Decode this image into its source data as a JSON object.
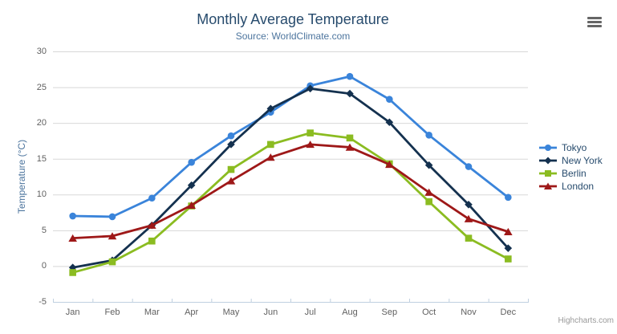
{
  "credits": "Highcharts.com",
  "menu_icon": "hamburger-menu-icon",
  "style": {
    "title_color": "#274b6d",
    "subtitle_color": "#4d759e",
    "axis_title_color": "#4d759e",
    "tick_label_color": "#606060",
    "grid_color": "#d8d8d8",
    "axis_line_color": "#c0d0e0",
    "legend_text_color": "#274b6d",
    "credits_color": "#999999",
    "menu_icon_color": "#666666",
    "background_color": "#ffffff"
  },
  "chart_data": {
    "type": "line",
    "title": "Monthly Average Temperature",
    "subtitle": "Source: WorldClimate.com",
    "xlabel": "",
    "ylabel": "Temperature (°C)",
    "categories": [
      "Jan",
      "Feb",
      "Mar",
      "Apr",
      "May",
      "Jun",
      "Jul",
      "Aug",
      "Sep",
      "Oct",
      "Nov",
      "Dec"
    ],
    "ylim": [
      -5,
      30
    ],
    "yticks": [
      -5,
      0,
      5,
      10,
      15,
      20,
      25,
      30
    ],
    "grid": true,
    "legend_position": "right",
    "series": [
      {
        "name": "Tokyo",
        "color": "#3a84da",
        "marker": "circle",
        "values": [
          7.0,
          6.9,
          9.5,
          14.5,
          18.2,
          21.5,
          25.2,
          26.5,
          23.3,
          18.3,
          13.9,
          9.6
        ]
      },
      {
        "name": "New York",
        "color": "#14314f",
        "marker": "diamond",
        "values": [
          -0.2,
          0.8,
          5.7,
          11.3,
          17.0,
          22.0,
          24.8,
          24.1,
          20.1,
          14.1,
          8.6,
          2.5
        ]
      },
      {
        "name": "Berlin",
        "color": "#8bbc21",
        "marker": "square",
        "values": [
          -0.9,
          0.6,
          3.5,
          8.4,
          13.5,
          17.0,
          18.6,
          17.9,
          14.3,
          9.0,
          3.9,
          1.0
        ]
      },
      {
        "name": "London",
        "color": "#9e1818",
        "marker": "triangle",
        "values": [
          3.9,
          4.2,
          5.7,
          8.5,
          11.9,
          15.2,
          17.0,
          16.6,
          14.2,
          10.3,
          6.6,
          4.8
        ]
      }
    ]
  }
}
